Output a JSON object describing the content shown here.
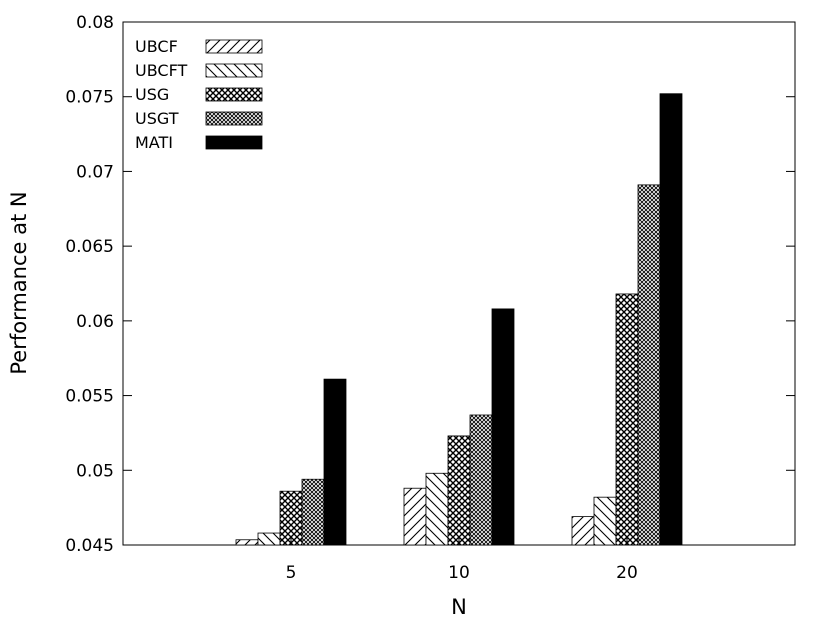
{
  "chart_data": {
    "type": "bar",
    "categories": [
      "5",
      "10",
      "20"
    ],
    "series": [
      {
        "name": "UBCF",
        "pattern": "hatch-right",
        "values": [
          0.04535,
          0.0488,
          0.0469
        ]
      },
      {
        "name": "UBCFT",
        "pattern": "hatch-left",
        "values": [
          0.0458,
          0.0498,
          0.0482
        ]
      },
      {
        "name": "USG",
        "pattern": "checker-coarse",
        "values": [
          0.0486,
          0.0523,
          0.0618
        ]
      },
      {
        "name": "USGT",
        "pattern": "checker-fine",
        "values": [
          0.0494,
          0.0537,
          0.0691
        ]
      },
      {
        "name": "MATI",
        "pattern": "solid",
        "values": [
          0.0561,
          0.0608,
          0.0752
        ]
      }
    ],
    "yticks": [
      "0.045",
      "0.05",
      "0.055",
      "0.06",
      "0.065",
      "0.07",
      "0.075",
      "0.08"
    ],
    "ylim": [
      0.045,
      0.08
    ],
    "xlabel": "N",
    "ylabel": "Performance at N",
    "legend_position": "top-left",
    "grid": false,
    "bar_color": "#000000"
  }
}
